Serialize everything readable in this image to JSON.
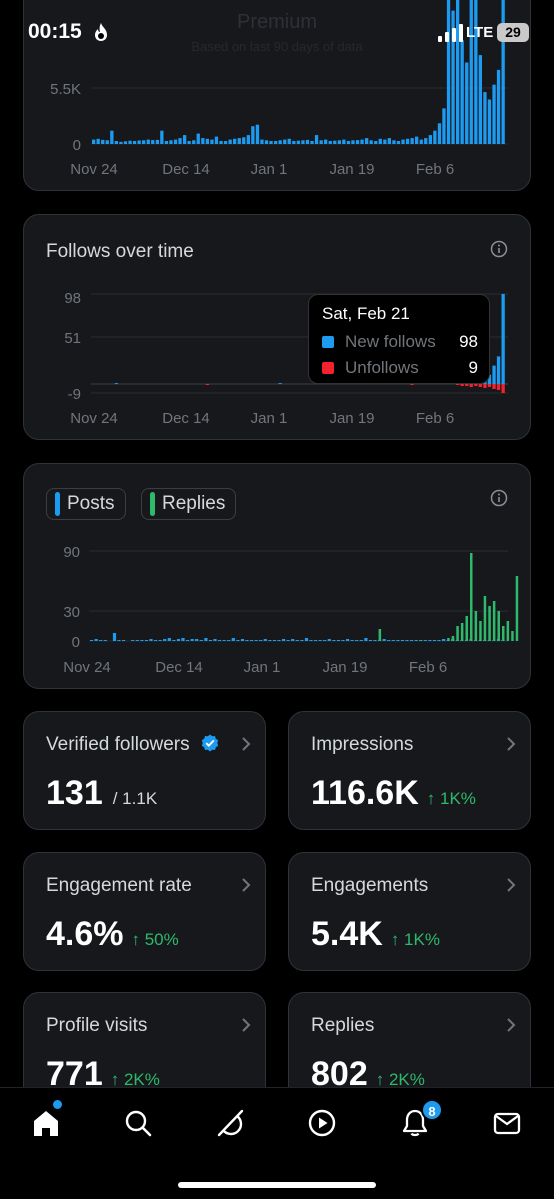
{
  "status_bar": {
    "time": "00:15",
    "network": "LTE",
    "battery": "29"
  },
  "page_header": {
    "title": "Premium",
    "subtitle": "Based on last 90 days of data"
  },
  "cards": {
    "impressions_chart": {
      "title": "",
      "y_ticks": [
        "5.5K",
        "0"
      ],
      "x_ticks": [
        "Nov 24",
        "Dec 14",
        "Jan 1",
        "Jan 19",
        "Feb 6"
      ]
    },
    "follows": {
      "title": "Follows over time",
      "y_ticks": [
        "98",
        "51",
        "-9"
      ],
      "x_ticks": [
        "Nov 24",
        "Dec 14",
        "Jan 1",
        "Jan 19",
        "Feb 6"
      ],
      "tooltip": {
        "date": "Sat, Feb 21",
        "rows": [
          {
            "name": "New follows",
            "value": "98"
          },
          {
            "name": "Unfollows",
            "value": "9"
          }
        ]
      }
    },
    "posts_replies": {
      "toggle_posts": "Posts",
      "toggle_replies": "Replies",
      "y_ticks": [
        "90",
        "30",
        "0"
      ],
      "x_ticks": [
        "Nov 24",
        "Dec 14",
        "Jan 1",
        "Jan 19",
        "Feb 6"
      ]
    }
  },
  "stats": [
    {
      "label": "Verified followers",
      "value": "131",
      "extra": "/ 1.1K",
      "change": ""
    },
    {
      "label": "Impressions",
      "value": "116.6K",
      "extra": "",
      "change": "↑ 1K%"
    },
    {
      "label": "Engagement rate",
      "value": "4.6%",
      "extra": "",
      "change": "↑ 50%"
    },
    {
      "label": "Engagements",
      "value": "5.4K",
      "extra": "",
      "change": "↑ 1K%"
    },
    {
      "label": "Profile visits",
      "value": "771",
      "extra": "",
      "change": "↑ 2K%"
    },
    {
      "label": "Replies",
      "value": "802",
      "extra": "",
      "change": "↑ 2K%"
    }
  ],
  "bottom_nav": {
    "items": [
      "home-icon",
      "search-icon",
      "grok-icon",
      "video-icon",
      "notifications-icon",
      "messages-icon"
    ],
    "notification_badge": "8"
  },
  "colors": {
    "accent": "#1d9bf0",
    "positive": "#2fb96b",
    "negative": "#f4212e",
    "card": "#16181c"
  },
  "chart_data": [
    {
      "type": "bar",
      "title": "",
      "xlabel": "",
      "ylabel": "",
      "ylim": [
        0,
        11000
      ],
      "x_ticks": [
        "Nov 24",
        "Dec 14",
        "Jan 1",
        "Jan 19",
        "Feb 6"
      ],
      "series": [
        {
          "color": "#1d9bf0",
          "values": [
            300,
            350,
            280,
            250,
            900,
            200,
            150,
            180,
            220,
            200,
            240,
            250,
            300,
            260,
            280,
            900,
            200,
            250,
            300,
            400,
            600,
            200,
            250,
            700,
            400,
            350,
            300,
            500,
            200,
            200,
            300,
            350,
            400,
            450,
            600,
            1200,
            1300,
            300,
            250,
            200,
            200,
            250,
            300,
            350,
            200,
            220,
            250,
            280,
            200,
            600,
            250,
            300,
            200,
            220,
            250,
            300,
            200,
            250,
            260,
            300,
            400,
            250,
            200,
            350,
            300,
            400,
            250,
            200,
            300,
            350,
            400,
            500,
            300,
            400,
            600,
            900,
            1400,
            2400,
            11000,
            9000,
            11000,
            7000,
            5500,
            11000,
            11000,
            6000,
            3500,
            3000,
            4000,
            5000,
            11000
          ]
        }
      ]
    },
    {
      "type": "bar",
      "title": "Follows over time",
      "xlabel": "",
      "ylabel": "",
      "ylim": [
        -9,
        98
      ],
      "y_ticks": [
        98,
        51,
        -9
      ],
      "x_ticks": [
        "Nov 24",
        "Dec 14",
        "Jan 1",
        "Jan 19",
        "Feb 6"
      ],
      "series": [
        {
          "name": "New follows",
          "color": "#1d9bf0",
          "values": [
            0,
            0,
            0,
            0,
            0,
            1,
            0,
            0,
            0,
            0,
            0,
            0,
            0,
            0,
            0,
            0,
            0,
            0,
            0,
            0,
            0,
            0,
            0,
            0,
            0,
            0,
            0,
            0,
            0,
            0,
            0,
            0,
            0,
            0,
            0,
            0,
            0,
            0,
            0,
            0,
            0,
            1,
            0,
            0,
            0,
            0,
            0,
            0,
            0,
            0,
            0,
            0,
            0,
            0,
            0,
            0,
            0,
            0,
            0,
            1,
            0,
            0,
            0,
            0,
            0,
            0,
            0,
            0,
            0,
            0,
            0,
            0,
            0,
            0,
            1,
            0,
            0,
            0,
            1,
            2,
            4,
            3,
            5,
            2,
            8,
            6,
            4,
            10,
            20,
            30,
            98
          ]
        },
        {
          "name": "Unfollows",
          "color": "#f4212e",
          "values": [
            0,
            0,
            0,
            0,
            0,
            0,
            0,
            0,
            0,
            0,
            0,
            0,
            0,
            0,
            0,
            0,
            0,
            0,
            0,
            0,
            0,
            0,
            0,
            0,
            0,
            1,
            0,
            0,
            0,
            0,
            0,
            0,
            0,
            0,
            0,
            0,
            0,
            0,
            0,
            0,
            0,
            0,
            0,
            0,
            0,
            0,
            0,
            0,
            0,
            0,
            0,
            0,
            0,
            0,
            0,
            0,
            0,
            0,
            0,
            0,
            0,
            0,
            0,
            0,
            0,
            0,
            0,
            0,
            0,
            0,
            1,
            0,
            0,
            0,
            0,
            0,
            0,
            0,
            0,
            0,
            1,
            2,
            2,
            3,
            2,
            3,
            4,
            3,
            5,
            6,
            9
          ]
        }
      ]
    },
    {
      "type": "bar",
      "title": "",
      "xlabel": "",
      "ylabel": "",
      "ylim": [
        0,
        90
      ],
      "y_ticks": [
        90,
        30,
        0
      ],
      "x_ticks": [
        "Nov 24",
        "Dec 14",
        "Jan 1",
        "Jan 19",
        "Feb 6"
      ],
      "series": [
        {
          "name": "Posts",
          "color": "#1d9bf0",
          "values": [
            1,
            2,
            1,
            1,
            0,
            8,
            1,
            1,
            0,
            1,
            1,
            1,
            1,
            2,
            1,
            1,
            2,
            3,
            1,
            2,
            3,
            1,
            2,
            2,
            1,
            3,
            1,
            2,
            1,
            1,
            1,
            3,
            1,
            2,
            1,
            1,
            1,
            1,
            2,
            1,
            1,
            1,
            2,
            1,
            2,
            1,
            1,
            3,
            1,
            1,
            1,
            1,
            2,
            1,
            1,
            1,
            2,
            1,
            1,
            1,
            3,
            1,
            1,
            1,
            2,
            1,
            1,
            1,
            1,
            1,
            1,
            1,
            1,
            1,
            1,
            1,
            1,
            2,
            1,
            2,
            1,
            1,
            1,
            2,
            1,
            1,
            1,
            1,
            1,
            2,
            1
          ]
        },
        {
          "name": "Replies",
          "color": "#2fb96b",
          "values": [
            0,
            0,
            0,
            0,
            0,
            0,
            0,
            0,
            0,
            0,
            0,
            0,
            0,
            0,
            0,
            0,
            0,
            0,
            0,
            0,
            0,
            0,
            0,
            0,
            0,
            0,
            0,
            0,
            0,
            0,
            0,
            0,
            0,
            0,
            0,
            0,
            0,
            0,
            0,
            0,
            0,
            0,
            0,
            0,
            0,
            0,
            0,
            0,
            0,
            0,
            0,
            0,
            0,
            0,
            0,
            0,
            0,
            0,
            0,
            0,
            0,
            0,
            0,
            12,
            0,
            0,
            0,
            0,
            0,
            0,
            0,
            0,
            1,
            0,
            0,
            0,
            0,
            0,
            3,
            5,
            15,
            18,
            25,
            88,
            30,
            20,
            45,
            35,
            40,
            30,
            15,
            20,
            10,
            65
          ]
        }
      ]
    }
  ]
}
